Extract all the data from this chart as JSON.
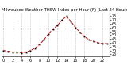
{
  "title": "Milwaukee Weather THSW Index per Hour (F) (Last 24 Hours)",
  "hours": [
    0,
    1,
    2,
    3,
    4,
    5,
    6,
    7,
    8,
    9,
    10,
    11,
    12,
    13,
    14,
    15,
    16,
    17,
    18,
    19,
    20,
    21,
    22,
    23
  ],
  "values": [
    30,
    29,
    28,
    28,
    27,
    28,
    30,
    33,
    38,
    44,
    52,
    58,
    63,
    70,
    75,
    68,
    60,
    54,
    48,
    44,
    42,
    40,
    39,
    39
  ],
  "line_color": "#cc0000",
  "marker_color": "#000000",
  "grid_color": "#aaaaaa",
  "bg_color": "#ffffff",
  "ylim_min": 22,
  "ylim_max": 80,
  "yticks": [
    25,
    30,
    35,
    40,
    45,
    50,
    55,
    60,
    65,
    70,
    75
  ],
  "ylabel_fontsize": 3.5,
  "title_fontsize": 3.8,
  "xlabel_fontsize": 3.5,
  "xtick_step": 2
}
